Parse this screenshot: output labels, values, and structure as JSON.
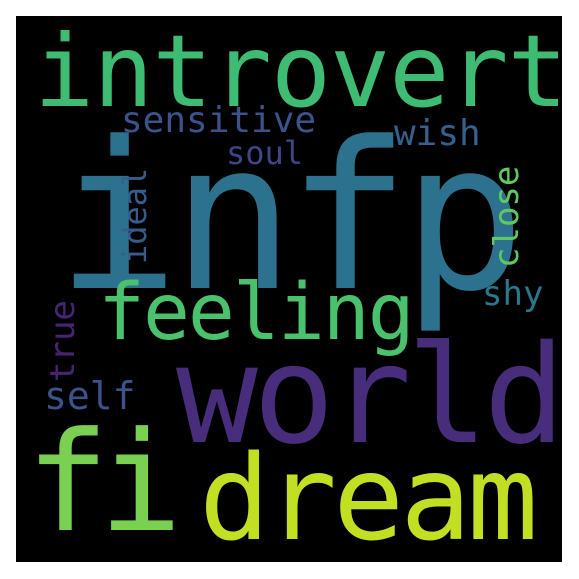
{
  "wordcloud": {
    "words": [
      {
        "text": "introvert",
        "color": "#3fbc73"
      },
      {
        "text": "infp",
        "color": "#2c728e"
      },
      {
        "text": "feeling",
        "color": "#4ac16d"
      },
      {
        "text": "world",
        "color": "#472d7b"
      },
      {
        "text": "fi",
        "color": "#7ad151"
      },
      {
        "text": "dream",
        "color": "#c2df23"
      },
      {
        "text": "sensitive",
        "color": "#3b528b"
      },
      {
        "text": "soul",
        "color": "#414487"
      },
      {
        "text": "wish",
        "color": "#34618d"
      },
      {
        "text": "ideal",
        "color": "#365c8d"
      },
      {
        "text": "close",
        "color": "#5ec962"
      },
      {
        "text": "shy",
        "color": "#2a788e"
      },
      {
        "text": "true",
        "color": "#482475"
      },
      {
        "text": "self",
        "color": "#3b528b"
      }
    ]
  }
}
